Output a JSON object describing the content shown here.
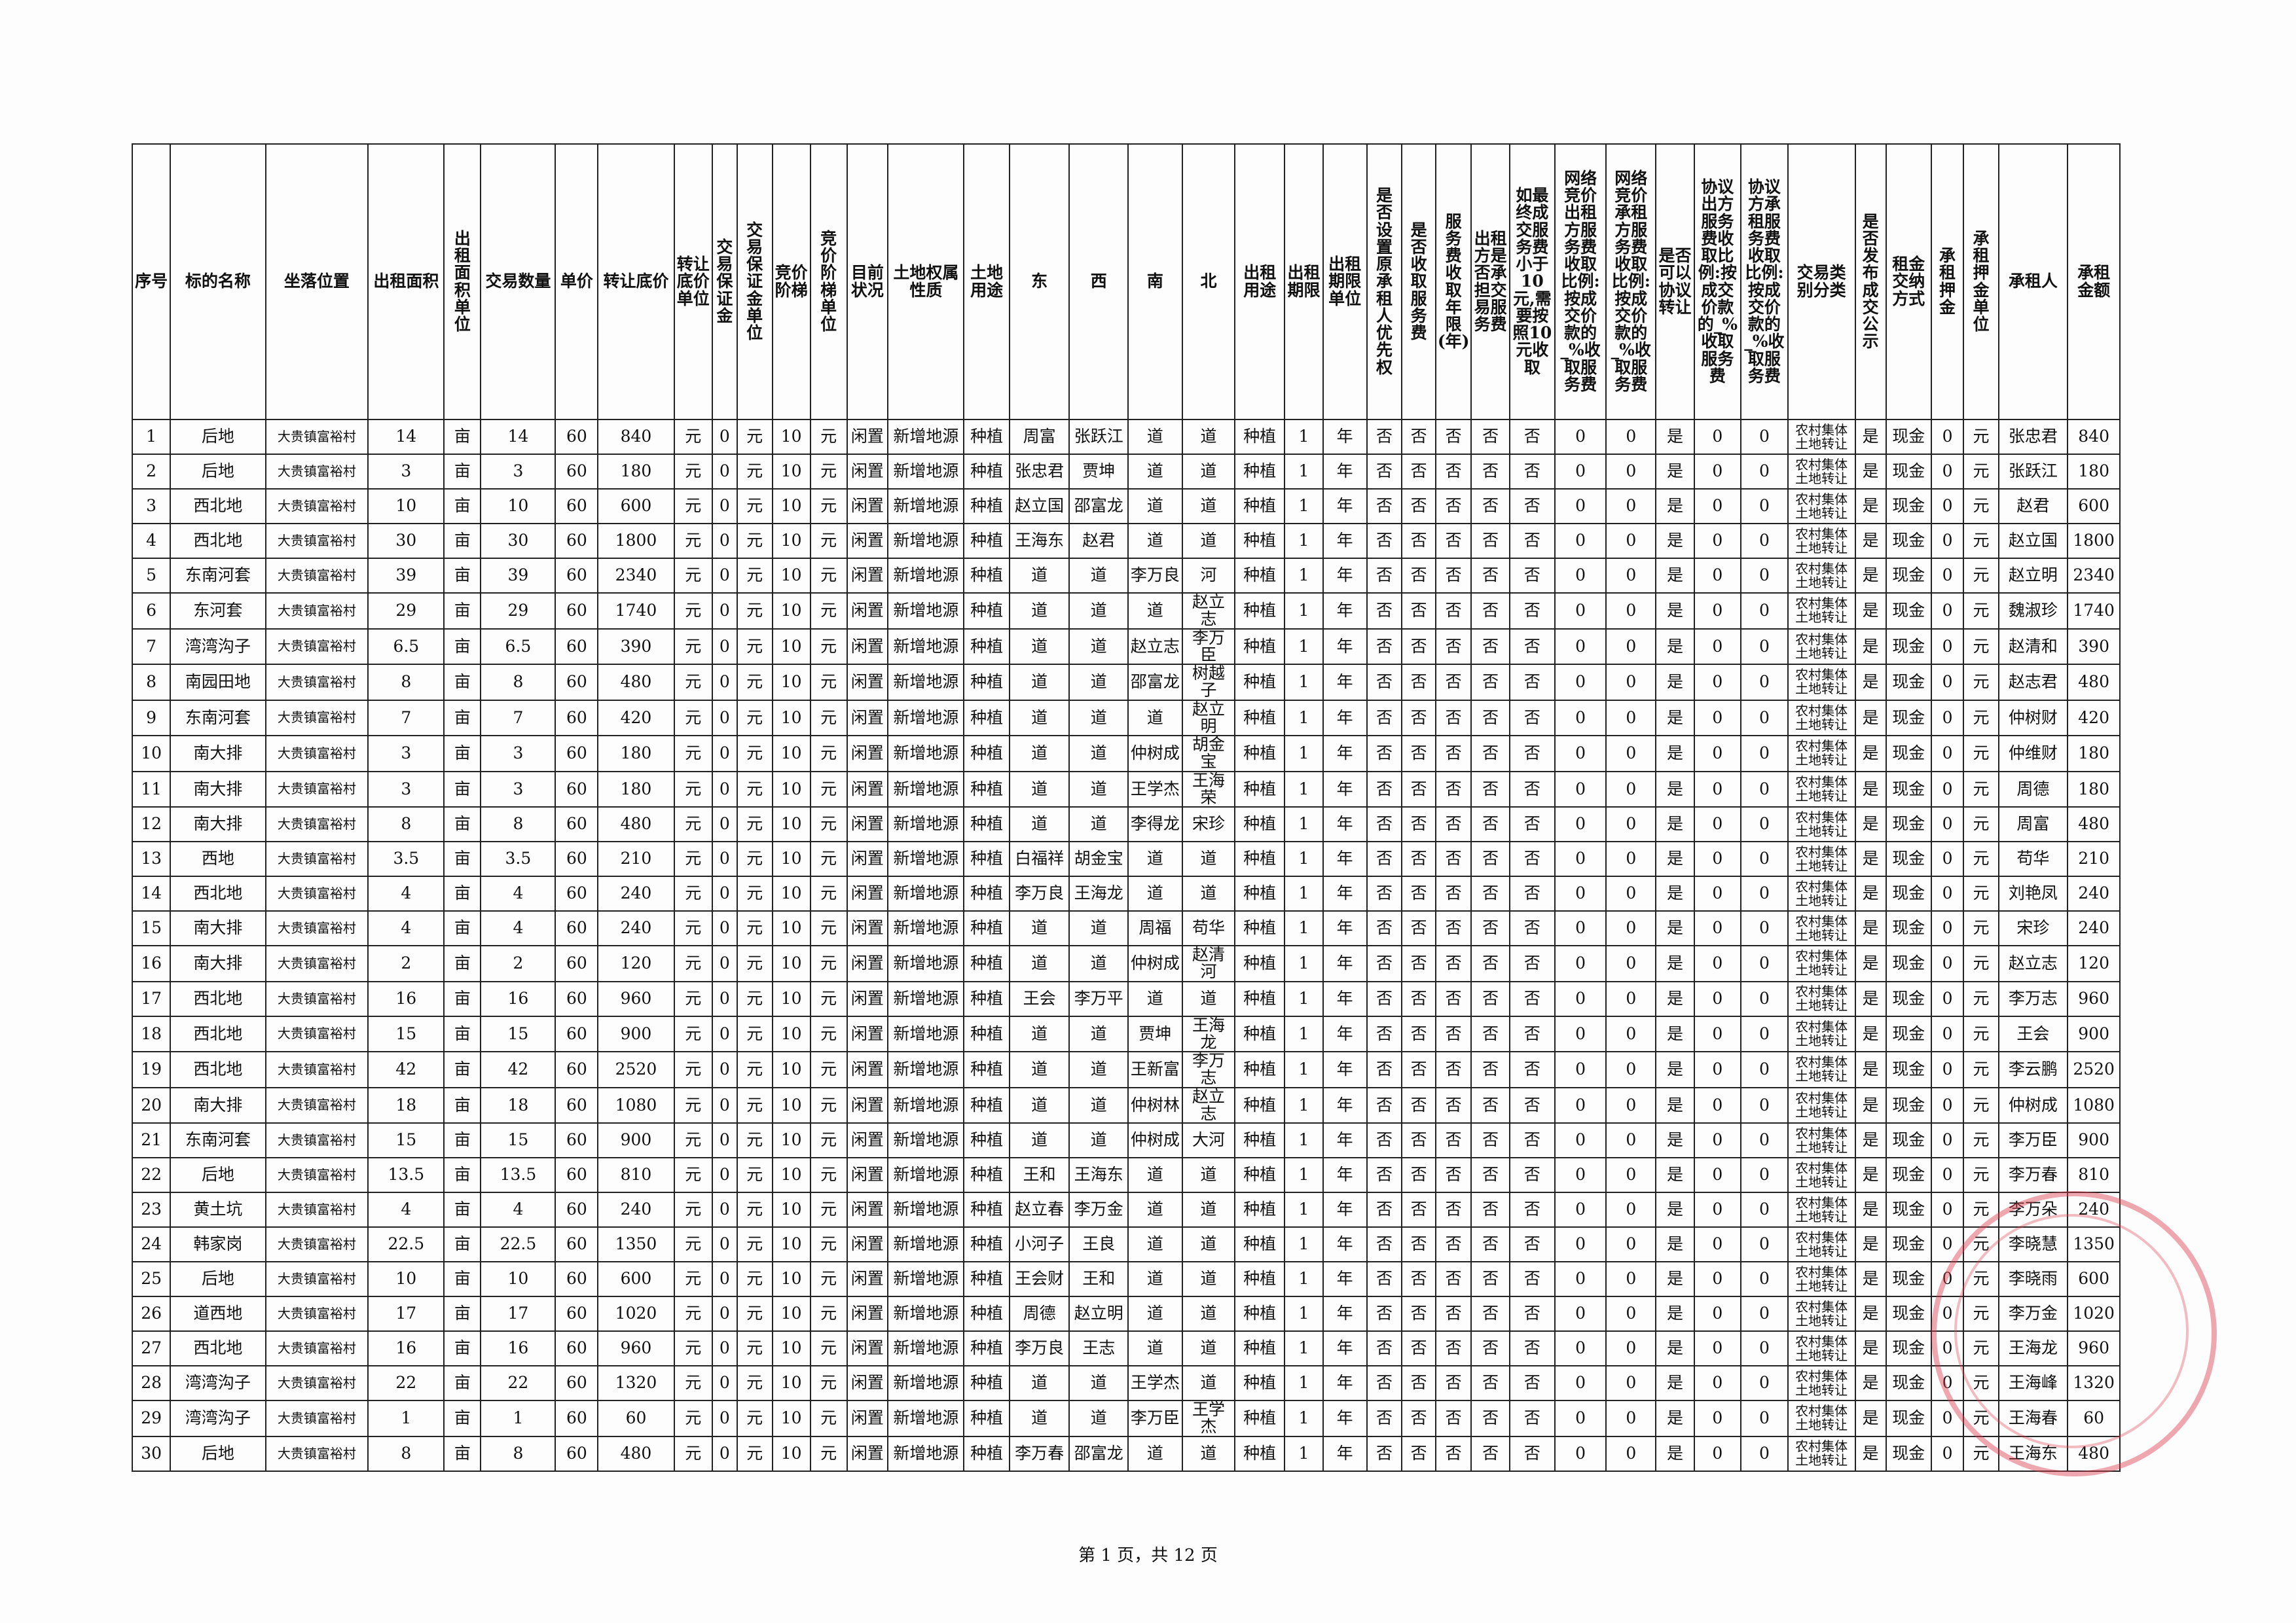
{
  "table": {
    "headers": [
      "序号",
      "标的名称",
      "坐落位置",
      "出租面积",
      "出租面积单位",
      "交易数量",
      "单价",
      "转让底价",
      "转让底价单位",
      "交易保证金",
      "交易保证金单位",
      "竞价阶梯",
      "竞价阶梯单位",
      "目前状况",
      "土地权属性质",
      "土地用途",
      "东",
      "西",
      "南",
      "北",
      "出租用途",
      "出租期限",
      "出租期限单位",
      "是否设置原承租人优先权",
      "是否收取服务费",
      "服务费收取年限(年)",
      "出租方是否承担交易服务费",
      "如最终成交服务费小于10元,需要按照10元收取",
      "网络竞价出租方服务费收取比例:按成交价款的_%收取服务费",
      "网络竞价承租方服务费收取比例:按成交价款的_%收取服务费",
      "是否可以协议转让",
      "协议出方服务费收取比例:按成交价款的_%收取服务费",
      "协议方承租服务费收取比例:按成交价款的_%收取服务费",
      "交易类别分类",
      "是否发布成交公示",
      "租金交纳方式",
      "承租押金",
      "承租押金单位",
      "承租人",
      "承租金额"
    ],
    "rows": [
      [
        "1",
        "后地",
        "大贵镇富裕村",
        "14",
        "亩",
        "14",
        "60",
        "840",
        "元",
        "0",
        "元",
        "10",
        "元",
        "闲置",
        "新增地源",
        "种植",
        "周富",
        "张跃江",
        "道",
        "道",
        "种植",
        "1",
        "年",
        "否",
        "否",
        "否",
        "否",
        "否",
        "0",
        "0",
        "是",
        "0",
        "0",
        "农村集体土地转让",
        "是",
        "现金",
        "0",
        "元",
        "张忠君",
        "840"
      ],
      [
        "2",
        "后地",
        "大贵镇富裕村",
        "3",
        "亩",
        "3",
        "60",
        "180",
        "元",
        "0",
        "元",
        "10",
        "元",
        "闲置",
        "新增地源",
        "种植",
        "张忠君",
        "贾坤",
        "道",
        "道",
        "种植",
        "1",
        "年",
        "否",
        "否",
        "否",
        "否",
        "否",
        "0",
        "0",
        "是",
        "0",
        "0",
        "农村集体土地转让",
        "是",
        "现金",
        "0",
        "元",
        "张跃江",
        "180"
      ],
      [
        "3",
        "西北地",
        "大贵镇富裕村",
        "10",
        "亩",
        "10",
        "60",
        "600",
        "元",
        "0",
        "元",
        "10",
        "元",
        "闲置",
        "新增地源",
        "种植",
        "赵立国",
        "邵富龙",
        "道",
        "道",
        "种植",
        "1",
        "年",
        "否",
        "否",
        "否",
        "否",
        "否",
        "0",
        "0",
        "是",
        "0",
        "0",
        "农村集体土地转让",
        "是",
        "现金",
        "0",
        "元",
        "赵君",
        "600"
      ],
      [
        "4",
        "西北地",
        "大贵镇富裕村",
        "30",
        "亩",
        "30",
        "60",
        "1800",
        "元",
        "0",
        "元",
        "10",
        "元",
        "闲置",
        "新增地源",
        "种植",
        "王海东",
        "赵君",
        "道",
        "道",
        "种植",
        "1",
        "年",
        "否",
        "否",
        "否",
        "否",
        "否",
        "0",
        "0",
        "是",
        "0",
        "0",
        "农村集体土地转让",
        "是",
        "现金",
        "0",
        "元",
        "赵立国",
        "1800"
      ],
      [
        "5",
        "东南河套",
        "大贵镇富裕村",
        "39",
        "亩",
        "39",
        "60",
        "2340",
        "元",
        "0",
        "元",
        "10",
        "元",
        "闲置",
        "新增地源",
        "种植",
        "道",
        "道",
        "李万良",
        "河",
        "种植",
        "1",
        "年",
        "否",
        "否",
        "否",
        "否",
        "否",
        "0",
        "0",
        "是",
        "0",
        "0",
        "农村集体土地转让",
        "是",
        "现金",
        "0",
        "元",
        "赵立明",
        "2340"
      ],
      [
        "6",
        "东河套",
        "大贵镇富裕村",
        "29",
        "亩",
        "29",
        "60",
        "1740",
        "元",
        "0",
        "元",
        "10",
        "元",
        "闲置",
        "新增地源",
        "种植",
        "道",
        "道",
        "道",
        "赵立志",
        "种植",
        "1",
        "年",
        "否",
        "否",
        "否",
        "否",
        "否",
        "0",
        "0",
        "是",
        "0",
        "0",
        "农村集体土地转让",
        "是",
        "现金",
        "0",
        "元",
        "魏淑珍",
        "1740"
      ],
      [
        "7",
        "湾湾沟子",
        "大贵镇富裕村",
        "6.5",
        "亩",
        "6.5",
        "60",
        "390",
        "元",
        "0",
        "元",
        "10",
        "元",
        "闲置",
        "新增地源",
        "种植",
        "道",
        "道",
        "赵立志",
        "李万臣",
        "种植",
        "1",
        "年",
        "否",
        "否",
        "否",
        "否",
        "否",
        "0",
        "0",
        "是",
        "0",
        "0",
        "农村集体土地转让",
        "是",
        "现金",
        "0",
        "元",
        "赵清和",
        "390"
      ],
      [
        "8",
        "南园田地",
        "大贵镇富裕村",
        "8",
        "亩",
        "8",
        "60",
        "480",
        "元",
        "0",
        "元",
        "10",
        "元",
        "闲置",
        "新增地源",
        "种植",
        "道",
        "道",
        "邵富龙",
        "树越子",
        "种植",
        "1",
        "年",
        "否",
        "否",
        "否",
        "否",
        "否",
        "0",
        "0",
        "是",
        "0",
        "0",
        "农村集体土地转让",
        "是",
        "现金",
        "0",
        "元",
        "赵志君",
        "480"
      ],
      [
        "9",
        "东南河套",
        "大贵镇富裕村",
        "7",
        "亩",
        "7",
        "60",
        "420",
        "元",
        "0",
        "元",
        "10",
        "元",
        "闲置",
        "新增地源",
        "种植",
        "道",
        "道",
        "道",
        "赵立明",
        "种植",
        "1",
        "年",
        "否",
        "否",
        "否",
        "否",
        "否",
        "0",
        "0",
        "是",
        "0",
        "0",
        "农村集体土地转让",
        "是",
        "现金",
        "0",
        "元",
        "仲树财",
        "420"
      ],
      [
        "10",
        "南大排",
        "大贵镇富裕村",
        "3",
        "亩",
        "3",
        "60",
        "180",
        "元",
        "0",
        "元",
        "10",
        "元",
        "闲置",
        "新增地源",
        "种植",
        "道",
        "道",
        "仲树成",
        "胡金宝",
        "种植",
        "1",
        "年",
        "否",
        "否",
        "否",
        "否",
        "否",
        "0",
        "0",
        "是",
        "0",
        "0",
        "农村集体土地转让",
        "是",
        "现金",
        "0",
        "元",
        "仲维财",
        "180"
      ],
      [
        "11",
        "南大排",
        "大贵镇富裕村",
        "3",
        "亩",
        "3",
        "60",
        "180",
        "元",
        "0",
        "元",
        "10",
        "元",
        "闲置",
        "新增地源",
        "种植",
        "道",
        "道",
        "王学杰",
        "王海荣",
        "种植",
        "1",
        "年",
        "否",
        "否",
        "否",
        "否",
        "否",
        "0",
        "0",
        "是",
        "0",
        "0",
        "农村集体土地转让",
        "是",
        "现金",
        "0",
        "元",
        "周德",
        "180"
      ],
      [
        "12",
        "南大排",
        "大贵镇富裕村",
        "8",
        "亩",
        "8",
        "60",
        "480",
        "元",
        "0",
        "元",
        "10",
        "元",
        "闲置",
        "新增地源",
        "种植",
        "道",
        "道",
        "李得龙",
        "宋珍",
        "种植",
        "1",
        "年",
        "否",
        "否",
        "否",
        "否",
        "否",
        "0",
        "0",
        "是",
        "0",
        "0",
        "农村集体土地转让",
        "是",
        "现金",
        "0",
        "元",
        "周富",
        "480"
      ],
      [
        "13",
        "西地",
        "大贵镇富裕村",
        "3.5",
        "亩",
        "3.5",
        "60",
        "210",
        "元",
        "0",
        "元",
        "10",
        "元",
        "闲置",
        "新增地源",
        "种植",
        "白福祥",
        "胡金宝",
        "道",
        "道",
        "种植",
        "1",
        "年",
        "否",
        "否",
        "否",
        "否",
        "否",
        "0",
        "0",
        "是",
        "0",
        "0",
        "农村集体土地转让",
        "是",
        "现金",
        "0",
        "元",
        "苟华",
        "210"
      ],
      [
        "14",
        "西北地",
        "大贵镇富裕村",
        "4",
        "亩",
        "4",
        "60",
        "240",
        "元",
        "0",
        "元",
        "10",
        "元",
        "闲置",
        "新增地源",
        "种植",
        "李万良",
        "王海龙",
        "道",
        "道",
        "种植",
        "1",
        "年",
        "否",
        "否",
        "否",
        "否",
        "否",
        "0",
        "0",
        "是",
        "0",
        "0",
        "农村集体土地转让",
        "是",
        "现金",
        "0",
        "元",
        "刘艳凤",
        "240"
      ],
      [
        "15",
        "南大排",
        "大贵镇富裕村",
        "4",
        "亩",
        "4",
        "60",
        "240",
        "元",
        "0",
        "元",
        "10",
        "元",
        "闲置",
        "新增地源",
        "种植",
        "道",
        "道",
        "周福",
        "苟华",
        "种植",
        "1",
        "年",
        "否",
        "否",
        "否",
        "否",
        "否",
        "0",
        "0",
        "是",
        "0",
        "0",
        "农村集体土地转让",
        "是",
        "现金",
        "0",
        "元",
        "宋珍",
        "240"
      ],
      [
        "16",
        "南大排",
        "大贵镇富裕村",
        "2",
        "亩",
        "2",
        "60",
        "120",
        "元",
        "0",
        "元",
        "10",
        "元",
        "闲置",
        "新增地源",
        "种植",
        "道",
        "道",
        "仲树成",
        "赵清河",
        "种植",
        "1",
        "年",
        "否",
        "否",
        "否",
        "否",
        "否",
        "0",
        "0",
        "是",
        "0",
        "0",
        "农村集体土地转让",
        "是",
        "现金",
        "0",
        "元",
        "赵立志",
        "120"
      ],
      [
        "17",
        "西北地",
        "大贵镇富裕村",
        "16",
        "亩",
        "16",
        "60",
        "960",
        "元",
        "0",
        "元",
        "10",
        "元",
        "闲置",
        "新增地源",
        "种植",
        "王会",
        "李万平",
        "道",
        "道",
        "种植",
        "1",
        "年",
        "否",
        "否",
        "否",
        "否",
        "否",
        "0",
        "0",
        "是",
        "0",
        "0",
        "农村集体土地转让",
        "是",
        "现金",
        "0",
        "元",
        "李万志",
        "960"
      ],
      [
        "18",
        "西北地",
        "大贵镇富裕村",
        "15",
        "亩",
        "15",
        "60",
        "900",
        "元",
        "0",
        "元",
        "10",
        "元",
        "闲置",
        "新增地源",
        "种植",
        "道",
        "道",
        "贾坤",
        "王海龙",
        "种植",
        "1",
        "年",
        "否",
        "否",
        "否",
        "否",
        "否",
        "0",
        "0",
        "是",
        "0",
        "0",
        "农村集体土地转让",
        "是",
        "现金",
        "0",
        "元",
        "王会",
        "900"
      ],
      [
        "19",
        "西北地",
        "大贵镇富裕村",
        "42",
        "亩",
        "42",
        "60",
        "2520",
        "元",
        "0",
        "元",
        "10",
        "元",
        "闲置",
        "新增地源",
        "种植",
        "道",
        "道",
        "王新富",
        "李万志",
        "种植",
        "1",
        "年",
        "否",
        "否",
        "否",
        "否",
        "否",
        "0",
        "0",
        "是",
        "0",
        "0",
        "农村集体土地转让",
        "是",
        "现金",
        "0",
        "元",
        "李云鹏",
        "2520"
      ],
      [
        "20",
        "南大排",
        "大贵镇富裕村",
        "18",
        "亩",
        "18",
        "60",
        "1080",
        "元",
        "0",
        "元",
        "10",
        "元",
        "闲置",
        "新增地源",
        "种植",
        "道",
        "道",
        "仲树林",
        "赵立志",
        "种植",
        "1",
        "年",
        "否",
        "否",
        "否",
        "否",
        "否",
        "0",
        "0",
        "是",
        "0",
        "0",
        "农村集体土地转让",
        "是",
        "现金",
        "0",
        "元",
        "仲树成",
        "1080"
      ],
      [
        "21",
        "东南河套",
        "大贵镇富裕村",
        "15",
        "亩",
        "15",
        "60",
        "900",
        "元",
        "0",
        "元",
        "10",
        "元",
        "闲置",
        "新增地源",
        "种植",
        "道",
        "道",
        "仲树成",
        "大河",
        "种植",
        "1",
        "年",
        "否",
        "否",
        "否",
        "否",
        "否",
        "0",
        "0",
        "是",
        "0",
        "0",
        "农村集体土地转让",
        "是",
        "现金",
        "0",
        "元",
        "李万臣",
        "900"
      ],
      [
        "22",
        "后地",
        "大贵镇富裕村",
        "13.5",
        "亩",
        "13.5",
        "60",
        "810",
        "元",
        "0",
        "元",
        "10",
        "元",
        "闲置",
        "新增地源",
        "种植",
        "王和",
        "王海东",
        "道",
        "道",
        "种植",
        "1",
        "年",
        "否",
        "否",
        "否",
        "否",
        "否",
        "0",
        "0",
        "是",
        "0",
        "0",
        "农村集体土地转让",
        "是",
        "现金",
        "0",
        "元",
        "李万春",
        "810"
      ],
      [
        "23",
        "黄土坑",
        "大贵镇富裕村",
        "4",
        "亩",
        "4",
        "60",
        "240",
        "元",
        "0",
        "元",
        "10",
        "元",
        "闲置",
        "新增地源",
        "种植",
        "赵立春",
        "李万金",
        "道",
        "道",
        "种植",
        "1",
        "年",
        "否",
        "否",
        "否",
        "否",
        "否",
        "0",
        "0",
        "是",
        "0",
        "0",
        "农村集体土地转让",
        "是",
        "现金",
        "0",
        "元",
        "李万朵",
        "240"
      ],
      [
        "24",
        "韩家岗",
        "大贵镇富裕村",
        "22.5",
        "亩",
        "22.5",
        "60",
        "1350",
        "元",
        "0",
        "元",
        "10",
        "元",
        "闲置",
        "新增地源",
        "种植",
        "小河子",
        "王良",
        "道",
        "道",
        "种植",
        "1",
        "年",
        "否",
        "否",
        "否",
        "否",
        "否",
        "0",
        "0",
        "是",
        "0",
        "0",
        "农村集体土地转让",
        "是",
        "现金",
        "0",
        "元",
        "李晓慧",
        "1350"
      ],
      [
        "25",
        "后地",
        "大贵镇富裕村",
        "10",
        "亩",
        "10",
        "60",
        "600",
        "元",
        "0",
        "元",
        "10",
        "元",
        "闲置",
        "新增地源",
        "种植",
        "王会财",
        "王和",
        "道",
        "道",
        "种植",
        "1",
        "年",
        "否",
        "否",
        "否",
        "否",
        "否",
        "0",
        "0",
        "是",
        "0",
        "0",
        "农村集体土地转让",
        "是",
        "现金",
        "0",
        "元",
        "李晓雨",
        "600"
      ],
      [
        "26",
        "道西地",
        "大贵镇富裕村",
        "17",
        "亩",
        "17",
        "60",
        "1020",
        "元",
        "0",
        "元",
        "10",
        "元",
        "闲置",
        "新增地源",
        "种植",
        "周德",
        "赵立明",
        "道",
        "道",
        "种植",
        "1",
        "年",
        "否",
        "否",
        "否",
        "否",
        "否",
        "0",
        "0",
        "是",
        "0",
        "0",
        "农村集体土地转让",
        "是",
        "现金",
        "0",
        "元",
        "李万金",
        "1020"
      ],
      [
        "27",
        "西北地",
        "大贵镇富裕村",
        "16",
        "亩",
        "16",
        "60",
        "960",
        "元",
        "0",
        "元",
        "10",
        "元",
        "闲置",
        "新增地源",
        "种植",
        "李万良",
        "王志",
        "道",
        "道",
        "种植",
        "1",
        "年",
        "否",
        "否",
        "否",
        "否",
        "否",
        "0",
        "0",
        "是",
        "0",
        "0",
        "农村集体土地转让",
        "是",
        "现金",
        "0",
        "元",
        "王海龙",
        "960"
      ],
      [
        "28",
        "湾湾沟子",
        "大贵镇富裕村",
        "22",
        "亩",
        "22",
        "60",
        "1320",
        "元",
        "0",
        "元",
        "10",
        "元",
        "闲置",
        "新增地源",
        "种植",
        "道",
        "道",
        "王学杰",
        "道",
        "种植",
        "1",
        "年",
        "否",
        "否",
        "否",
        "否",
        "否",
        "0",
        "0",
        "是",
        "0",
        "0",
        "农村集体土地转让",
        "是",
        "现金",
        "0",
        "元",
        "王海峰",
        "1320"
      ],
      [
        "29",
        "湾湾沟子",
        "大贵镇富裕村",
        "1",
        "亩",
        "1",
        "60",
        "60",
        "元",
        "0",
        "元",
        "10",
        "元",
        "闲置",
        "新增地源",
        "种植",
        "道",
        "道",
        "李万臣",
        "王学杰",
        "种植",
        "1",
        "年",
        "否",
        "否",
        "否",
        "否",
        "否",
        "0",
        "0",
        "是",
        "0",
        "0",
        "农村集体土地转让",
        "是",
        "现金",
        "0",
        "元",
        "王海春",
        "60"
      ],
      [
        "30",
        "后地",
        "大贵镇富裕村",
        "8",
        "亩",
        "8",
        "60",
        "480",
        "元",
        "0",
        "元",
        "10",
        "元",
        "闲置",
        "新增地源",
        "种植",
        "李万春",
        "邵富龙",
        "道",
        "道",
        "种植",
        "1",
        "年",
        "否",
        "否",
        "否",
        "否",
        "否",
        "0",
        "0",
        "是",
        "0",
        "0",
        "农村集体土地转让",
        "是",
        "现金",
        "0",
        "元",
        "王海东",
        "480"
      ]
    ]
  },
  "footer": "第 1 页，共 12 页"
}
